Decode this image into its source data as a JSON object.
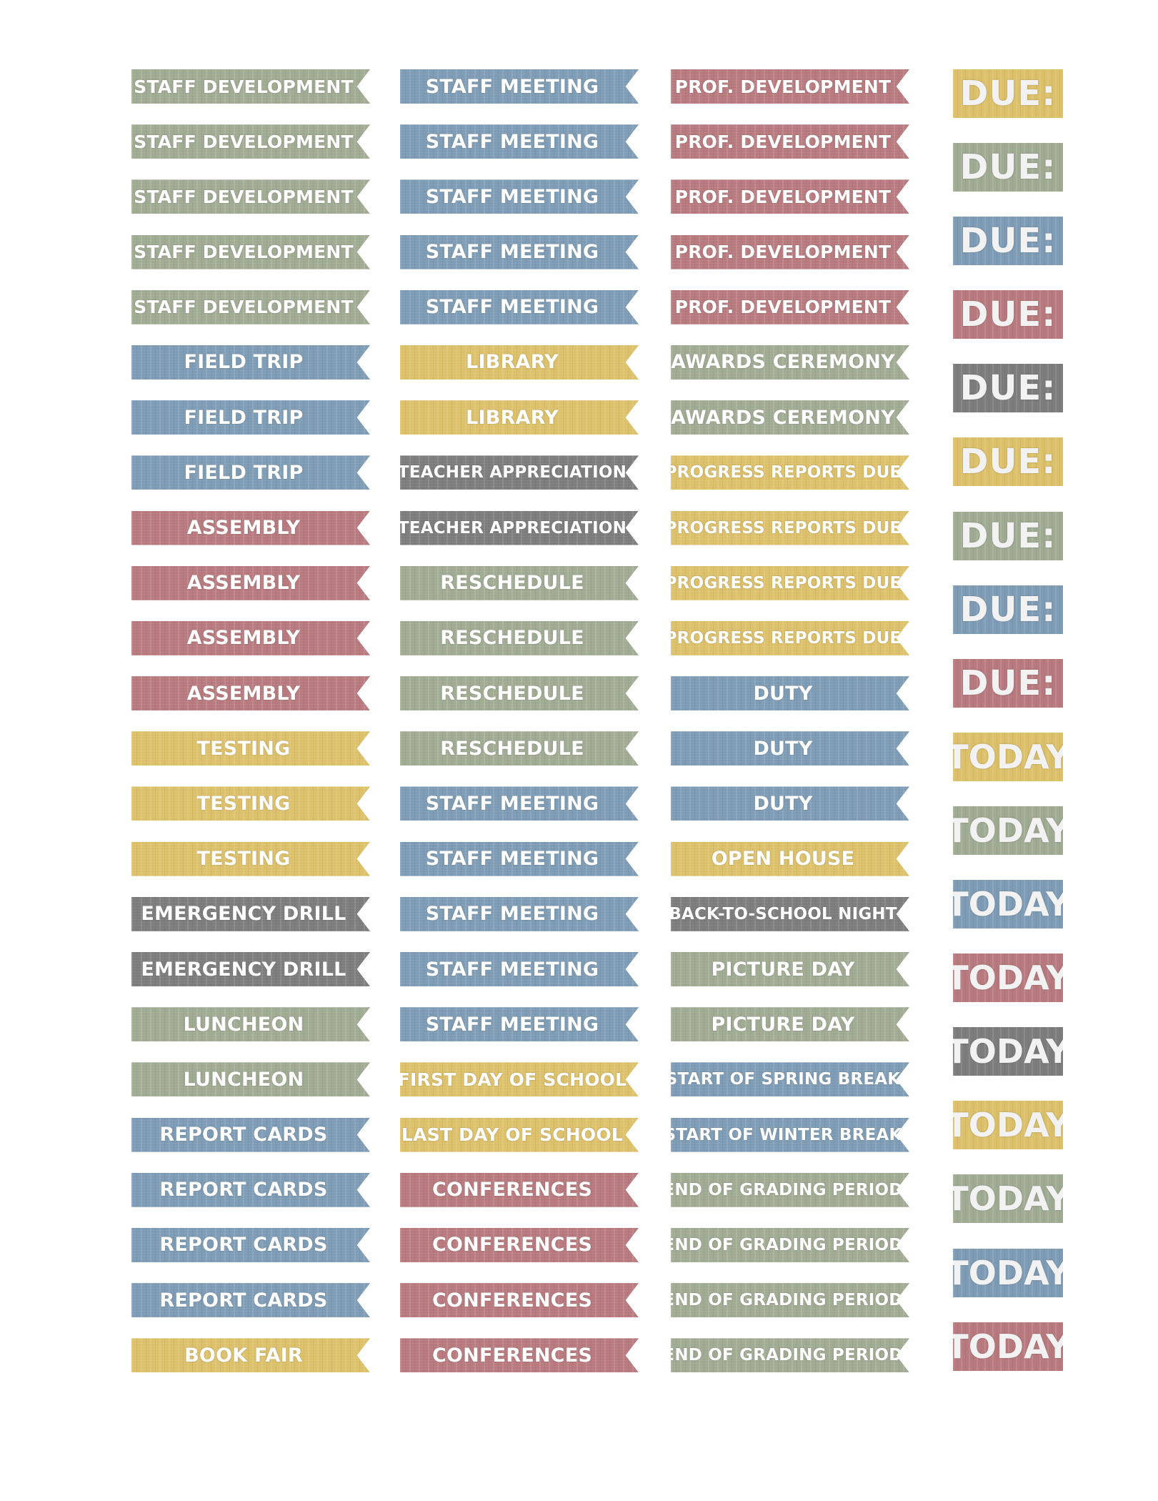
{
  "colors": {
    "sage": "#a0ab93",
    "blue": "#7e9cb5",
    "rose": "#b87a7e",
    "mustard": "#dcc06a",
    "gray": "#7d7d7d"
  },
  "columns": [
    {
      "stickers": [
        {
          "label": "STAFF DEVELOPMENT",
          "color": "sage"
        },
        {
          "label": "STAFF DEVELOPMENT",
          "color": "sage"
        },
        {
          "label": "STAFF DEVELOPMENT",
          "color": "sage"
        },
        {
          "label": "STAFF DEVELOPMENT",
          "color": "sage"
        },
        {
          "label": "STAFF DEVELOPMENT",
          "color": "sage"
        },
        {
          "label": "FIELD TRIP",
          "color": "blue"
        },
        {
          "label": "FIELD TRIP",
          "color": "blue"
        },
        {
          "label": "FIELD TRIP",
          "color": "blue"
        },
        {
          "label": "ASSEMBLY",
          "color": "rose"
        },
        {
          "label": "ASSEMBLY",
          "color": "rose"
        },
        {
          "label": "ASSEMBLY",
          "color": "rose"
        },
        {
          "label": "ASSEMBLY",
          "color": "rose"
        },
        {
          "label": "TESTING",
          "color": "mustard"
        },
        {
          "label": "TESTING",
          "color": "mustard"
        },
        {
          "label": "TESTING",
          "color": "mustard"
        },
        {
          "label": "EMERGENCY DRILL",
          "color": "gray"
        },
        {
          "label": "EMERGENCY DRILL",
          "color": "gray"
        },
        {
          "label": "LUNCHEON",
          "color": "sage"
        },
        {
          "label": "LUNCHEON",
          "color": "sage"
        },
        {
          "label": "REPORT CARDS",
          "color": "blue"
        },
        {
          "label": "REPORT CARDS",
          "color": "blue"
        },
        {
          "label": "REPORT CARDS",
          "color": "blue"
        },
        {
          "label": "REPORT CARDS",
          "color": "blue"
        },
        {
          "label": "BOOK FAIR",
          "color": "mustard"
        }
      ]
    },
    {
      "stickers": [
        {
          "label": "STAFF MEETING",
          "color": "blue"
        },
        {
          "label": "STAFF MEETING",
          "color": "blue"
        },
        {
          "label": "STAFF MEETING",
          "color": "blue"
        },
        {
          "label": "STAFF MEETING",
          "color": "blue"
        },
        {
          "label": "STAFF MEETING",
          "color": "blue"
        },
        {
          "label": "LIBRARY",
          "color": "mustard"
        },
        {
          "label": "LIBRARY",
          "color": "mustard"
        },
        {
          "label": "TEACHER APPRECIATION",
          "color": "gray"
        },
        {
          "label": "TEACHER APPRECIATION",
          "color": "gray"
        },
        {
          "label": "RESCHEDULE",
          "color": "sage"
        },
        {
          "label": "RESCHEDULE",
          "color": "sage"
        },
        {
          "label": "RESCHEDULE",
          "color": "sage"
        },
        {
          "label": "RESCHEDULE",
          "color": "sage"
        },
        {
          "label": "STAFF MEETING",
          "color": "blue"
        },
        {
          "label": "STAFF MEETING",
          "color": "blue"
        },
        {
          "label": "STAFF MEETING",
          "color": "blue"
        },
        {
          "label": "STAFF MEETING",
          "color": "blue"
        },
        {
          "label": "STAFF MEETING",
          "color": "blue"
        },
        {
          "label": "FIRST DAY OF SCHOOL",
          "color": "mustard"
        },
        {
          "label": "LAST DAY OF SCHOOL",
          "color": "mustard"
        },
        {
          "label": "CONFERENCES",
          "color": "rose"
        },
        {
          "label": "CONFERENCES",
          "color": "rose"
        },
        {
          "label": "CONFERENCES",
          "color": "rose"
        },
        {
          "label": "CONFERENCES",
          "color": "rose"
        }
      ]
    },
    {
      "stickers": [
        {
          "label": "PROF. DEVELOPMENT",
          "color": "rose"
        },
        {
          "label": "PROF. DEVELOPMENT",
          "color": "rose"
        },
        {
          "label": "PROF. DEVELOPMENT",
          "color": "rose"
        },
        {
          "label": "PROF. DEVELOPMENT",
          "color": "rose"
        },
        {
          "label": "PROF. DEVELOPMENT",
          "color": "rose"
        },
        {
          "label": "AWARDS CEREMONY",
          "color": "sage"
        },
        {
          "label": "AWARDS CEREMONY",
          "color": "sage"
        },
        {
          "label": "PROGRESS REPORTS DUE",
          "color": "mustard"
        },
        {
          "label": "PROGRESS REPORTS DUE",
          "color": "mustard"
        },
        {
          "label": "PROGRESS REPORTS DUE",
          "color": "mustard"
        },
        {
          "label": "PROGRESS REPORTS DUE",
          "color": "mustard"
        },
        {
          "label": "DUTY",
          "color": "blue"
        },
        {
          "label": "DUTY",
          "color": "blue"
        },
        {
          "label": "DUTY",
          "color": "blue"
        },
        {
          "label": "OPEN HOUSE",
          "color": "mustard"
        },
        {
          "label": "BACK-TO-SCHOOL NIGHT",
          "color": "gray"
        },
        {
          "label": "PICTURE DAY",
          "color": "sage"
        },
        {
          "label": "PICTURE DAY",
          "color": "sage"
        },
        {
          "label": "START OF SPRING BREAK",
          "color": "blue"
        },
        {
          "label": "START OF WINTER BREAK",
          "color": "blue"
        },
        {
          "label": "END OF GRADING PERIOD",
          "color": "sage"
        },
        {
          "label": "END OF GRADING PERIOD",
          "color": "sage"
        },
        {
          "label": "END OF GRADING PERIOD",
          "color": "sage"
        },
        {
          "label": "END OF GRADING PERIOD",
          "color": "sage"
        }
      ]
    }
  ],
  "tags": [
    {
      "label": "DUE:",
      "color": "mustard"
    },
    {
      "label": "DUE:",
      "color": "sage"
    },
    {
      "label": "DUE:",
      "color": "blue"
    },
    {
      "label": "DUE:",
      "color": "rose"
    },
    {
      "label": "DUE:",
      "color": "gray"
    },
    {
      "label": "DUE:",
      "color": "mustard"
    },
    {
      "label": "DUE:",
      "color": "sage"
    },
    {
      "label": "DUE:",
      "color": "blue"
    },
    {
      "label": "DUE:",
      "color": "rose"
    },
    {
      "label": "TODAY",
      "color": "mustard"
    },
    {
      "label": "TODAY",
      "color": "sage"
    },
    {
      "label": "TODAY",
      "color": "blue"
    },
    {
      "label": "TODAY",
      "color": "rose"
    },
    {
      "label": "TODAY",
      "color": "gray"
    },
    {
      "label": "TODAY",
      "color": "mustard"
    },
    {
      "label": "TODAY",
      "color": "sage"
    },
    {
      "label": "TODAY",
      "color": "blue"
    },
    {
      "label": "TODAY",
      "color": "rose"
    }
  ]
}
